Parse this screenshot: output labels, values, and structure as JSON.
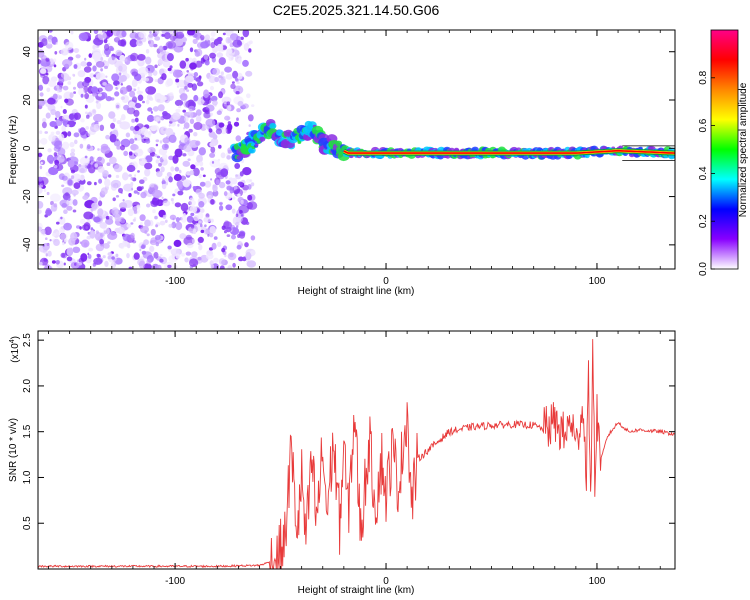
{
  "title": "C2E5.2025.321.14.50.G06",
  "chart_data": [
    {
      "type": "heatmap",
      "name": "spectrogram",
      "xlabel": "Height of straight line (km)",
      "ylabel": "Frequency (Hz)",
      "xlim": [
        -165,
        137
      ],
      "ylim": [
        -50,
        49
      ],
      "xticks": [
        -100,
        0,
        100
      ],
      "xtick_labels": [
        "-100",
        "0",
        "100"
      ],
      "yticks": [
        -40,
        -20,
        0,
        20,
        40
      ],
      "ytick_labels": [
        "-40",
        "-20",
        "0",
        "20",
        "40"
      ],
      "noise_region_km": [
        -165,
        -63
      ],
      "signal_track": [
        {
          "x": -72,
          "y": -2
        },
        {
          "x": -66,
          "y": 0
        },
        {
          "x": -60,
          "y": 5
        },
        {
          "x": -55,
          "y": 8
        },
        {
          "x": -50,
          "y": 4
        },
        {
          "x": -45,
          "y": 3
        },
        {
          "x": -40,
          "y": 6
        },
        {
          "x": -35,
          "y": 8
        },
        {
          "x": -30,
          "y": 2
        },
        {
          "x": -25,
          "y": 1
        },
        {
          "x": -18,
          "y": -2
        },
        {
          "x": -10,
          "y": -2
        },
        {
          "x": 0,
          "y": -2
        },
        {
          "x": 20,
          "y": -2
        },
        {
          "x": 60,
          "y": -2
        },
        {
          "x": 90,
          "y": -2
        },
        {
          "x": 110,
          "y": -1
        },
        {
          "x": 137,
          "y": -2
        }
      ],
      "colorbar": {
        "label": "Normalized spectral amplitude",
        "range": [
          0,
          1
        ],
        "ticks": [
          0.0,
          0.2,
          0.4,
          0.6,
          0.8
        ],
        "tick_labels": [
          "0.0",
          "0.2",
          "0.4",
          "0.6",
          "0.8"
        ],
        "colors": [
          "#ffffff",
          "#8800ff",
          "#0000ff",
          "#00ffff",
          "#00ff00",
          "#ffff00",
          "#ff8800",
          "#ff0000",
          "#ff0088"
        ]
      }
    },
    {
      "type": "line",
      "name": "snr",
      "xlabel": "Height of straight line (km)",
      "ylabel": "SNR (10 * v/v)",
      "scale_label": "(x10",
      "scale_exponent": "4",
      "scale_close": ")",
      "xlim": [
        -165,
        137
      ],
      "ylim": [
        0,
        2.6
      ],
      "xticks": [
        -100,
        0,
        100
      ],
      "xtick_labels": [
        "-100",
        "0",
        "100"
      ],
      "yticks": [
        0.5,
        1.0,
        1.5,
        2.0,
        2.5
      ],
      "ytick_labels": [
        "0.5",
        "1.0",
        "1.5",
        "2.0",
        "2.5"
      ],
      "line_color": "#e83a3a",
      "x": [
        -165,
        -140,
        -110,
        -80,
        -60,
        -52,
        -48,
        -45,
        -42,
        -40,
        -38,
        -35,
        -33,
        -30,
        -28,
        -25,
        -22,
        -20,
        -18,
        -15,
        -12,
        -10,
        -8,
        -5,
        -2,
        0,
        3,
        6,
        10,
        12,
        15,
        20,
        25,
        30,
        40,
        50,
        60,
        70,
        75,
        80,
        85,
        88,
        90,
        93,
        95,
        96,
        97,
        98,
        99,
        100,
        102,
        105,
        110,
        115,
        120,
        130,
        137
      ],
      "y": [
        0.03,
        0.03,
        0.03,
        0.03,
        0.04,
        0.1,
        0.3,
        1.3,
        0.4,
        1.0,
        0.3,
        1.2,
        0.5,
        1.3,
        0.6,
        1.4,
        0.5,
        1.3,
        0.6,
        1.7,
        0.4,
        0.9,
        1.4,
        0.7,
        1.2,
        0.8,
        1.3,
        0.9,
        1.75,
        0.7,
        1.2,
        1.3,
        1.4,
        1.5,
        1.55,
        1.57,
        1.58,
        1.57,
        1.52,
        1.6,
        1.45,
        1.65,
        1.3,
        1.8,
        1.1,
        2.1,
        0.6,
        2.6,
        0.9,
        1.7,
        1.2,
        1.45,
        1.6,
        1.5,
        1.52,
        1.5,
        1.47
      ]
    }
  ]
}
